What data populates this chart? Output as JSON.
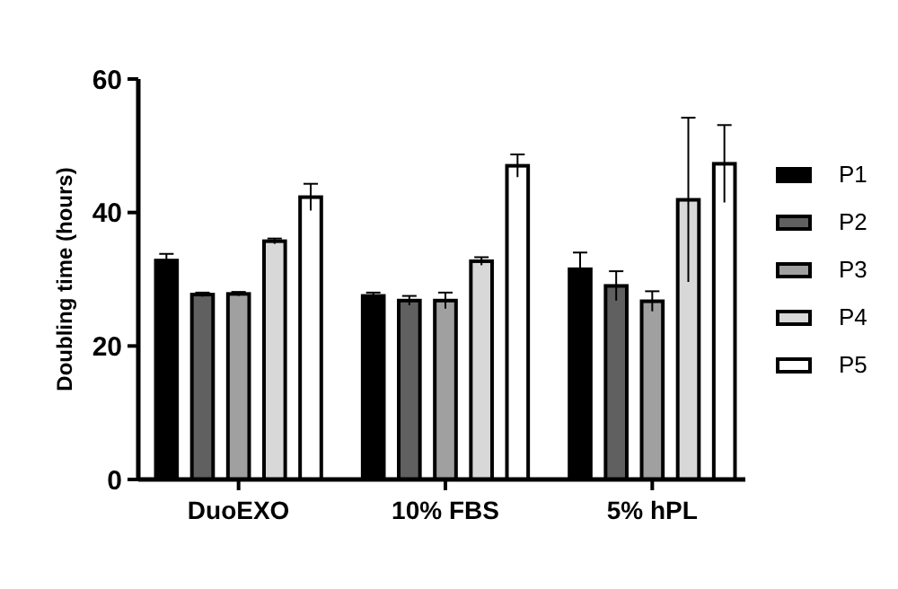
{
  "chart_data": {
    "type": "bar",
    "ylabel": "Doubling time (hours)",
    "categories": [
      "DuoEXO",
      "10% FBS",
      "5% hPL"
    ],
    "ylim": [
      0,
      60
    ],
    "yticks": [
      0,
      20,
      40,
      60
    ],
    "grid": false,
    "legend": "right",
    "series": [
      {
        "name": "P1",
        "color": "#000000",
        "values": [
          32.8,
          27.5,
          31.5
        ],
        "errors": [
          1,
          0.5,
          2.5
        ]
      },
      {
        "name": "P2",
        "color": "#606060",
        "values": [
          27.7,
          26.8,
          29
        ],
        "errors": [
          0.3,
          0.7,
          2.2
        ]
      },
      {
        "name": "P3",
        "color": "#a0a0a0",
        "values": [
          27.8,
          26.8,
          26.7
        ],
        "errors": [
          0.3,
          1.2,
          1.5
        ]
      },
      {
        "name": "P4",
        "color": "#d8d8d8",
        "values": [
          35.7,
          32.7,
          41.9
        ],
        "errors": [
          0.4,
          0.6,
          12.3
        ]
      },
      {
        "name": "P5",
        "color": "#ffffff",
        "values": [
          42.3,
          47,
          47.3
        ],
        "errors": [
          2,
          1.7,
          5.8
        ]
      }
    ]
  }
}
